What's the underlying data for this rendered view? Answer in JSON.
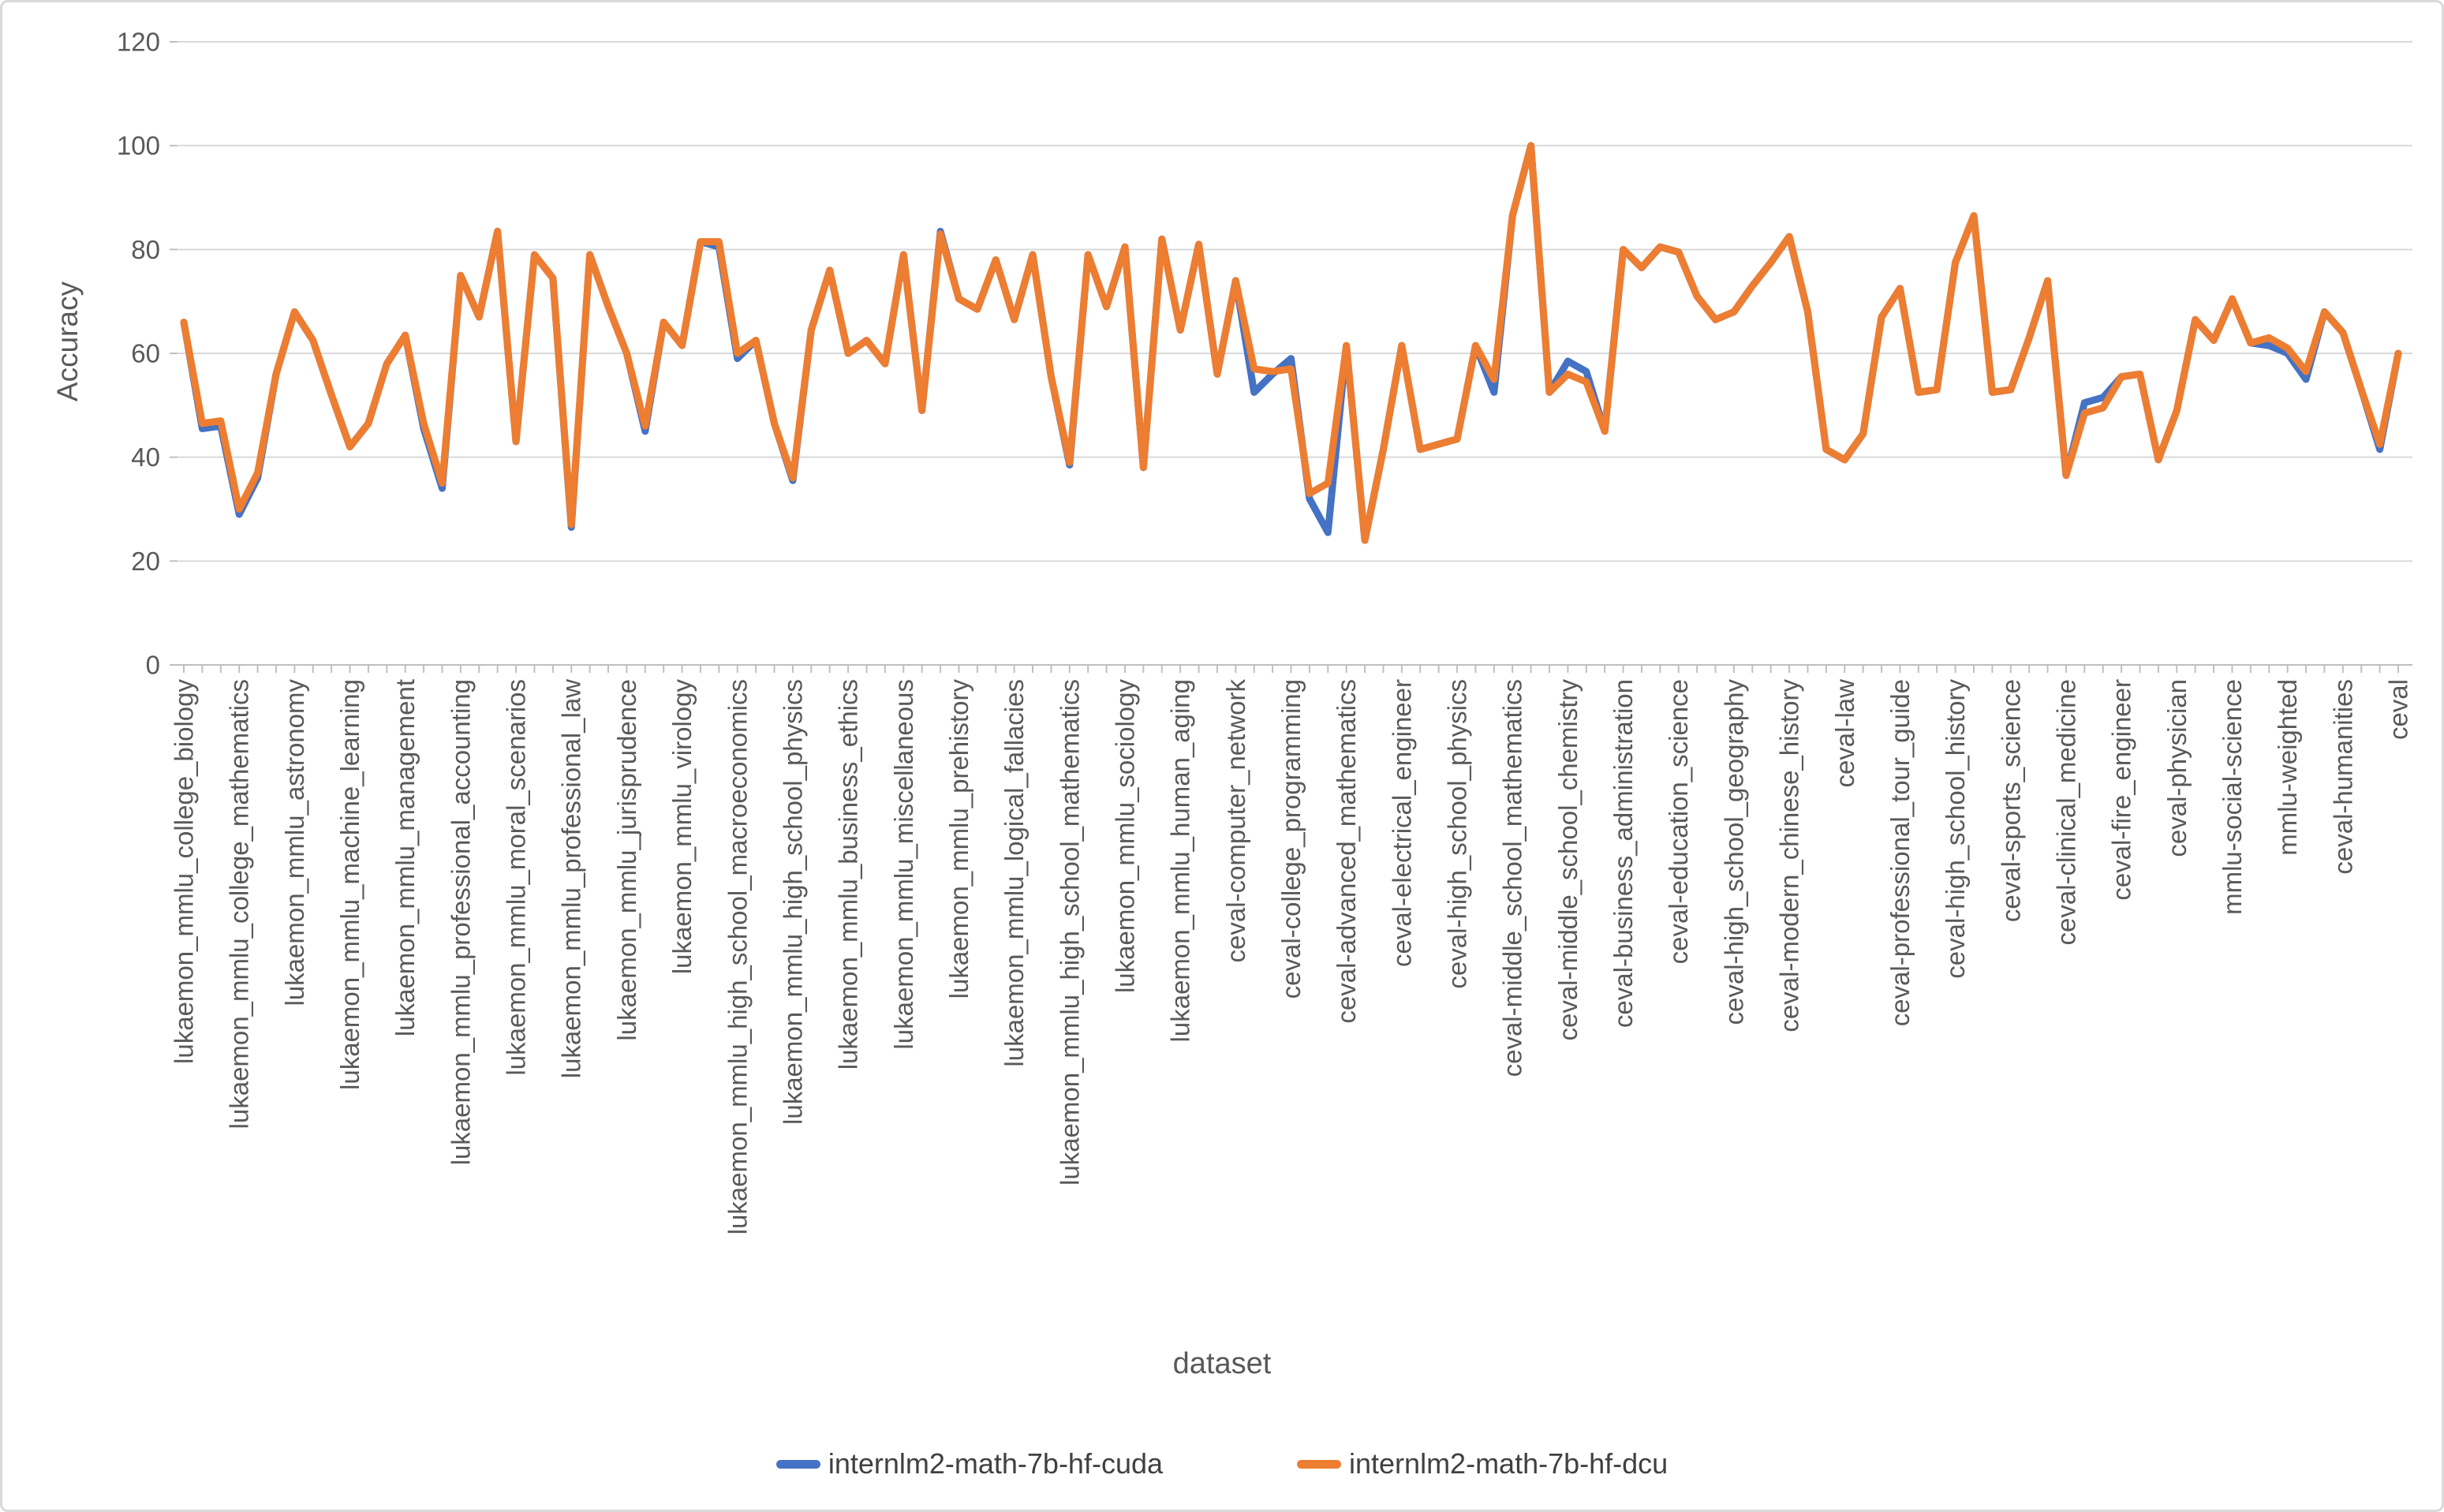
{
  "chart_data": {
    "type": "line",
    "title": "",
    "xlabel": "dataset",
    "ylabel": "Accuracy",
    "ylim": [
      0,
      120
    ],
    "yticks": [
      0,
      20,
      40,
      60,
      80,
      100,
      120
    ],
    "grid": "horizontal",
    "legend_position": "bottom-center",
    "label_every_n_points": 3,
    "x_tick_labels": [
      "lukaemon_mmlu_college_biology",
      "lukaemon_mmlu_college_mathematics",
      "lukaemon_mmlu_astronomy",
      "lukaemon_mmlu_machine_learning",
      "lukaemon_mmlu_management",
      "lukaemon_mmlu_professional_accounting",
      "lukaemon_mmlu_moral_scenarios",
      "lukaemon_mmlu_professional_law",
      "lukaemon_mmlu_jurisprudence",
      "lukaemon_mmlu_virology",
      "lukaemon_mmlu_high_school_macroeconomics",
      "lukaemon_mmlu_high_school_physics",
      "lukaemon_mmlu_business_ethics",
      "lukaemon_mmlu_miscellaneous",
      "lukaemon_mmlu_prehistory",
      "lukaemon_mmlu_logical_fallacies",
      "lukaemon_mmlu_high_school_mathematics",
      "lukaemon_mmlu_sociology",
      "lukaemon_mmlu_human_aging",
      "ceval-computer_network",
      "ceval-college_programming",
      "ceval-advanced_mathematics",
      "ceval-electrical_engineer",
      "ceval-high_school_physics",
      "ceval-middle_school_mathematics",
      "ceval-middle_school_chemistry",
      "ceval-business_administration",
      "ceval-education_science",
      "ceval-high_school_geography",
      "ceval-modern_chinese_history",
      "ceval-law",
      "ceval-professional_tour_guide",
      "ceval-high_school_history",
      "ceval-sports_science",
      "ceval-clinical_medicine",
      "ceval-fire_engineer",
      "ceval-physician",
      "mmlu-social-science",
      "mmlu-weighted",
      "ceval-humanities",
      "ceval"
    ],
    "series": [
      {
        "name": "internlm2-math-7b-hf-cuda",
        "color": "#4472C4",
        "values": [
          66,
          45.5,
          46,
          29,
          36,
          56,
          68,
          62.5,
          52,
          42,
          46.5,
          58,
          63.5,
          45.5,
          34,
          75,
          67,
          83.5,
          43,
          79,
          74.5,
          26.5,
          79,
          69,
          60,
          45,
          66,
          61.5,
          81.5,
          80.5,
          59,
          62.5,
          46.5,
          35.5,
          64.5,
          76,
          60,
          62.5,
          58,
          79,
          49,
          83.5,
          70.5,
          68.5,
          78,
          66.5,
          79,
          55.5,
          38.5,
          79,
          69,
          80.5,
          38,
          82,
          64.5,
          81,
          56,
          74,
          52.5,
          56,
          59,
          32,
          25.5,
          61.5,
          24,
          41.5,
          61.5,
          41.5,
          42.5,
          43.5,
          61.5,
          52.5,
          86.5,
          100,
          52.5,
          58.5,
          56.5,
          45,
          80,
          76.5,
          80.5,
          79.5,
          71,
          66.5,
          68,
          73,
          77.5,
          82.5,
          68,
          41.5,
          39.5,
          44.5,
          67,
          72.5,
          52.5,
          53,
          77.5,
          86.5,
          52.5,
          53,
          63,
          74,
          36.5,
          50.5,
          51.5,
          55.5,
          56,
          39.5,
          49,
          66.5,
          62.5,
          70.5,
          62,
          61.5,
          60,
          55,
          68,
          64,
          53,
          41.5,
          60
        ]
      },
      {
        "name": "internlm2-math-7b-hf-dcu",
        "color": "#ED7D31",
        "values": [
          66,
          46.5,
          47,
          30,
          37,
          56,
          68,
          62.5,
          52,
          42,
          46.5,
          58,
          63.5,
          46.5,
          35,
          75,
          67,
          83.5,
          43,
          79,
          74.5,
          27,
          79,
          69,
          60,
          46,
          66,
          61.5,
          81.5,
          81.5,
          60,
          62.5,
          46.5,
          36,
          64.5,
          76,
          60,
          62.5,
          58,
          79,
          49,
          83,
          70.5,
          68.5,
          78,
          66.5,
          79,
          55.5,
          39,
          79,
          69,
          80.5,
          38,
          82,
          64.5,
          81,
          56,
          74,
          57,
          56.5,
          57,
          33,
          35,
          61.5,
          24,
          41.5,
          61.5,
          41.5,
          42.5,
          43.5,
          61.5,
          55,
          86.5,
          100,
          52.5,
          56,
          54.5,
          45,
          80,
          76.5,
          80.5,
          79.5,
          71,
          66.5,
          68,
          73,
          77.5,
          82.5,
          68,
          41.5,
          39.5,
          44.5,
          67,
          72.5,
          52.5,
          53,
          77.5,
          86.5,
          52.5,
          53,
          63,
          74,
          36.5,
          48.5,
          49.5,
          55.5,
          56,
          39.5,
          49,
          66.5,
          62.5,
          70.5,
          62,
          63,
          61,
          56.5,
          68,
          64,
          53,
          42.5,
          60
        ]
      }
    ],
    "layout": {
      "plot_left": 230,
      "plot_right": 3037,
      "plot_top": 50,
      "plot_bottom": 840,
      "grid_x_start": 222,
      "grid_x_end": 3055,
      "tick_length": 10,
      "line_width": 9,
      "grid_color": "#d9d9d9",
      "axis_color": "#bfbfbf",
      "tick_label_color": "#595959",
      "tick_label_size": 33,
      "x_label_top": 858
    }
  },
  "axes": {
    "y_title": "Accuracy",
    "x_title": "dataset"
  },
  "legend": {
    "items": [
      {
        "label": "internlm2-math-7b-hf-cuda",
        "color": "#4472C4"
      },
      {
        "label": "internlm2-math-7b-hf-dcu",
        "color": "#ED7D31"
      }
    ]
  }
}
